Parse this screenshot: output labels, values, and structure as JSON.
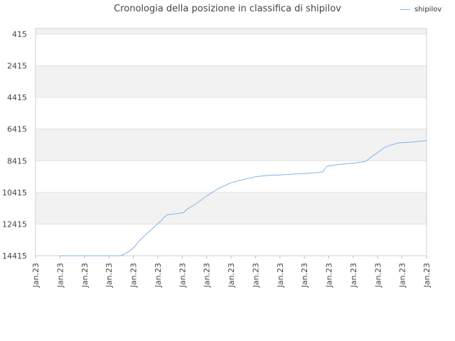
{
  "chart_data": {
    "type": "line",
    "title": "Cronologia della posizione in classifica di shipilov",
    "xlabel": "",
    "ylabel": "",
    "ylim": [
      14415,
      415
    ],
    "y_reversed": true,
    "yticks": [
      "415",
      "2415",
      "4415",
      "6415",
      "8415",
      "10415",
      "12415",
      "14415"
    ],
    "xticks": [
      "Jan.23",
      "Jan.23",
      "Jan.23",
      "Jan.23",
      "Jan.23",
      "Jan.23",
      "Jan.23",
      "Jan.23",
      "Jan.23",
      "Jan.23",
      "Jan.23",
      "Jan.23",
      "Jan.23",
      "Jan.23",
      "Jan.23",
      "Jan.23",
      "Jan.23"
    ],
    "grid": true,
    "legend_position": "top-right",
    "series": [
      {
        "name": "shipilov",
        "color": "#7cb5ec",
        "x": [
          1.0,
          1.5,
          2.0,
          2.5,
          3.0,
          3.5,
          3.7,
          3.9,
          4.05,
          4.25,
          5.15,
          5.25,
          5.35,
          5.4,
          6.05,
          6.1,
          6.25,
          6.5,
          7.0,
          7.5,
          8.0,
          8.5,
          9.0,
          9.5,
          10.0,
          10.5,
          11.0,
          11.5,
          11.75,
          11.9,
          12.05,
          12.5,
          13.0,
          13.5,
          13.8,
          14.0,
          14.25,
          14.5,
          14.8,
          15.0,
          15.5,
          16.0
        ],
        "y": [
          14415,
          14415,
          14415,
          14415,
          14415,
          14415,
          14250,
          14050,
          13850,
          13450,
          12180,
          12000,
          11880,
          11820,
          11700,
          11620,
          11420,
          11200,
          10650,
          10150,
          9800,
          9600,
          9420,
          9340,
          9310,
          9260,
          9220,
          9160,
          9120,
          8800,
          8720,
          8640,
          8570,
          8460,
          8100,
          7900,
          7600,
          7450,
          7300,
          7270,
          7220,
          7140
        ]
      }
    ]
  }
}
